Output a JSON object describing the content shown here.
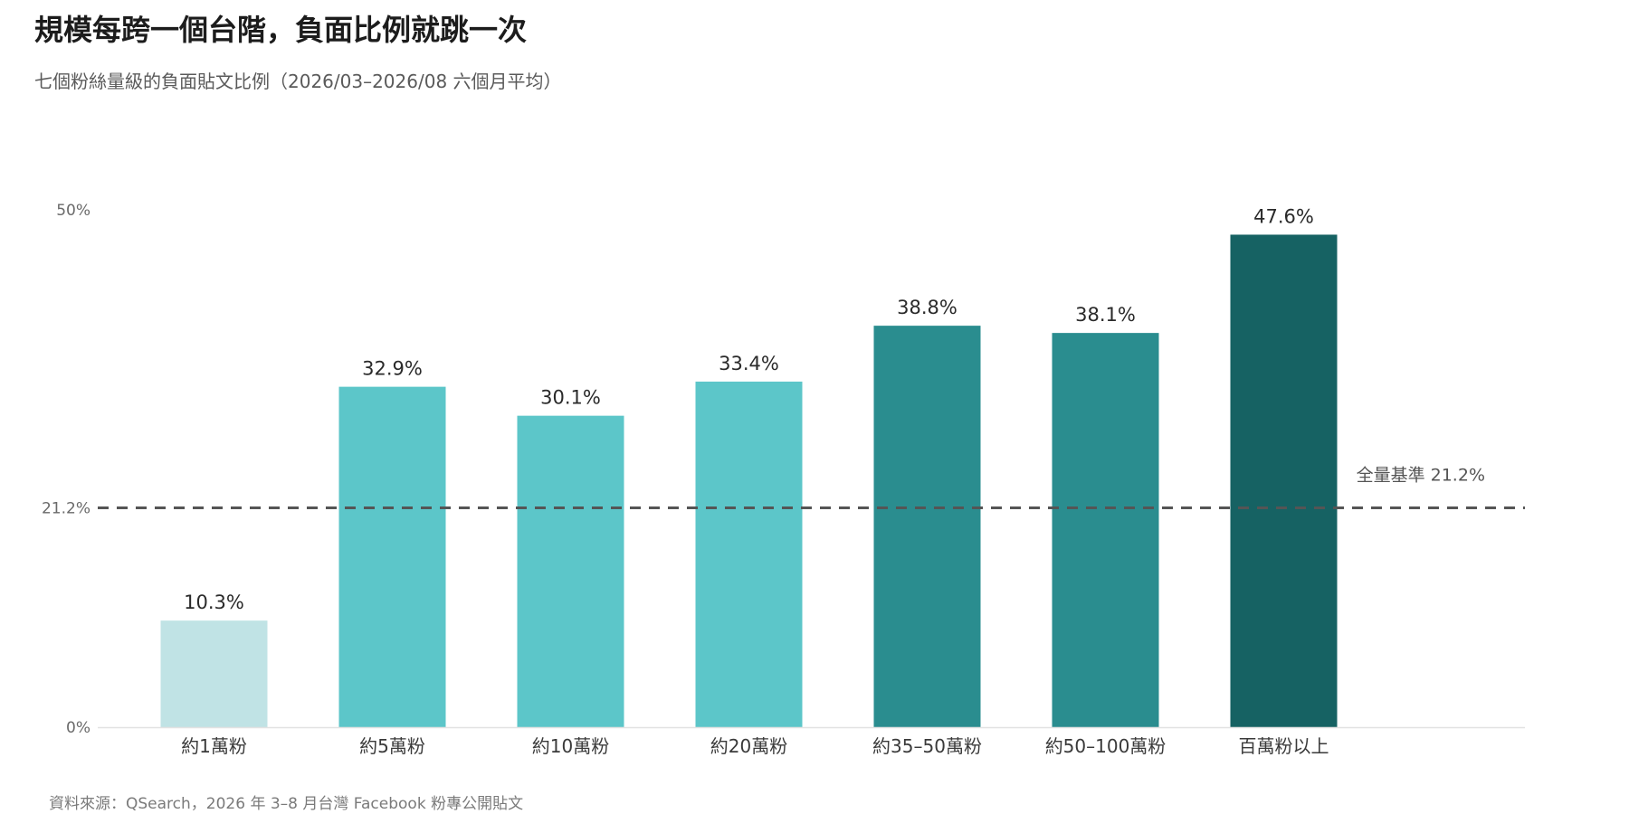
{
  "title": "規模每跨一個台階，負面比例就跳一次",
  "subtitle": "七個粉絲量級的負面貼文比例（2026/03–2026/08 六個月平均）",
  "source": "資料來源：QSearch，2026 年 3–8 月台灣 Facebook 粉專公開貼文",
  "chart_data": {
    "type": "bar",
    "categories": [
      "約1萬粉",
      "約5萬粉",
      "約10萬粉",
      "約20萬粉",
      "約35–50萬粉",
      "約50–100萬粉",
      "百萬粉以上"
    ],
    "values": [
      10.3,
      32.9,
      30.1,
      33.4,
      38.8,
      38.1,
      47.6
    ],
    "value_labels": [
      "10.3%",
      "32.9%",
      "30.1%",
      "33.4%",
      "38.8%",
      "38.1%",
      "47.6%"
    ],
    "colors": [
      "#c0e3e5",
      "#5cc6c9",
      "#5cc6c9",
      "#5cc6c9",
      "#2a8d8f",
      "#2a8d8f",
      "#166263"
    ],
    "ylim": [
      0,
      50
    ],
    "yticks": [
      {
        "value": 0,
        "label": "0%"
      },
      {
        "value": 21.2,
        "label": "21.2%"
      },
      {
        "value": 50,
        "label": "50%"
      }
    ],
    "reference_line": {
      "value": 21.2,
      "label": "全量基準 21.2%",
      "style": "dashed",
      "color": "#555555"
    },
    "grid": false,
    "legend": "none"
  }
}
